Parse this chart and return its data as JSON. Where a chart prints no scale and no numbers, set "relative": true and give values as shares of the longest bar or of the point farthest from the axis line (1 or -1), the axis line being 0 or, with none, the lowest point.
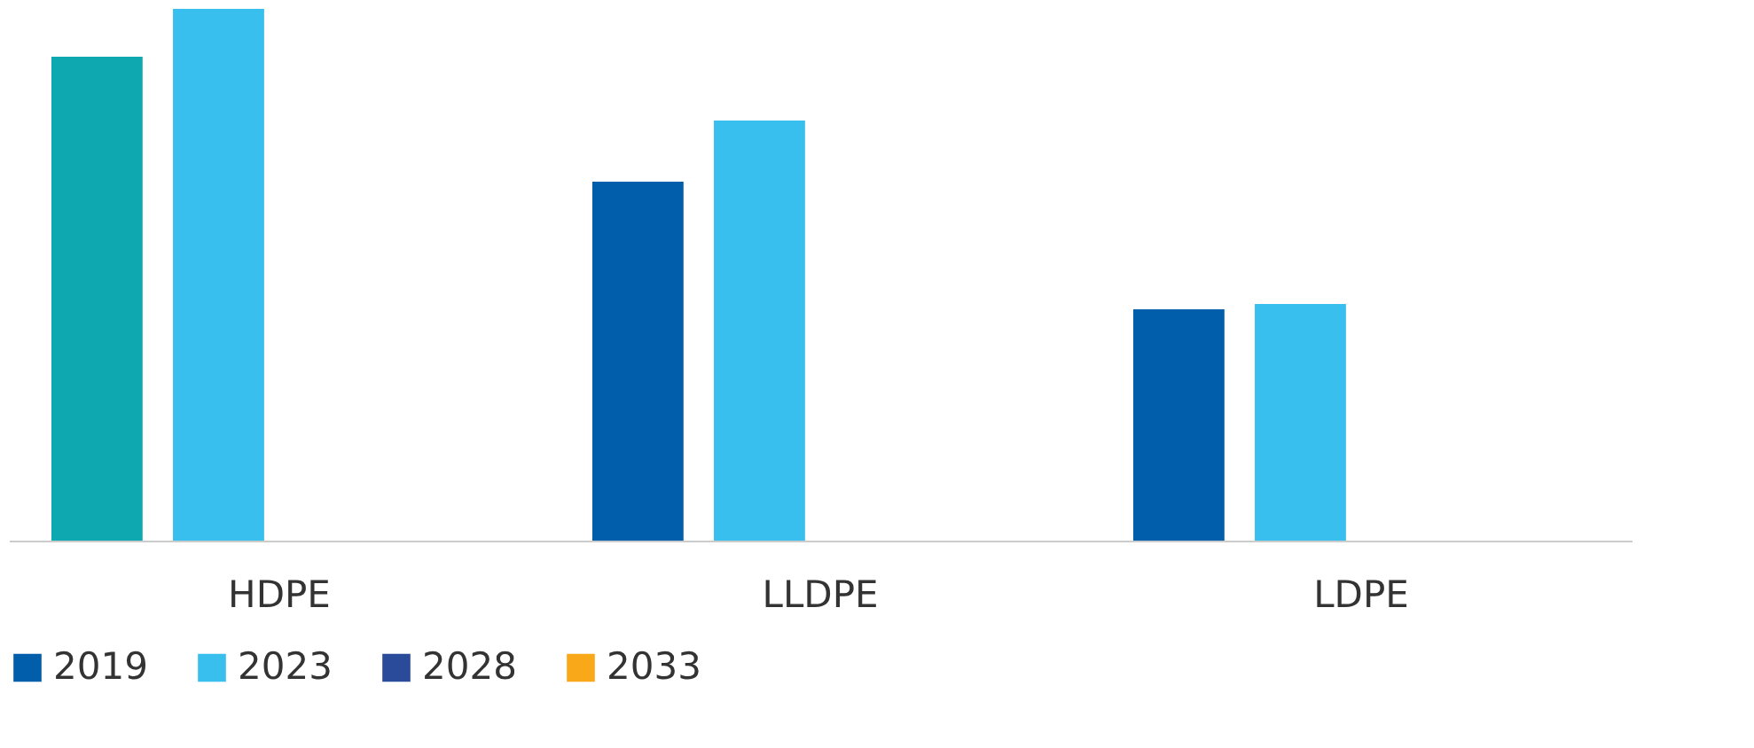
{
  "chart_data": {
    "type": "bar",
    "relative": true,
    "categories": [
      "HDPE",
      "LLDPE",
      "LDPE"
    ],
    "series": [
      {
        "name": "2019",
        "color": "#005eaa",
        "colors": [
          "#0ea8b0",
          "#005eaa",
          "#005eaa"
        ],
        "values": [
          0.91,
          0.675,
          0.435
        ]
      },
      {
        "name": "2023",
        "color": "#38bfee",
        "values": [
          1.0,
          0.79,
          0.445
        ]
      },
      {
        "name": "2028",
        "color": "#2a4a9a",
        "values": [
          null,
          null,
          null
        ]
      },
      {
        "name": "2033",
        "color": "#f9a81a",
        "values": [
          null,
          null,
          null
        ]
      }
    ],
    "legend": "bottom"
  }
}
